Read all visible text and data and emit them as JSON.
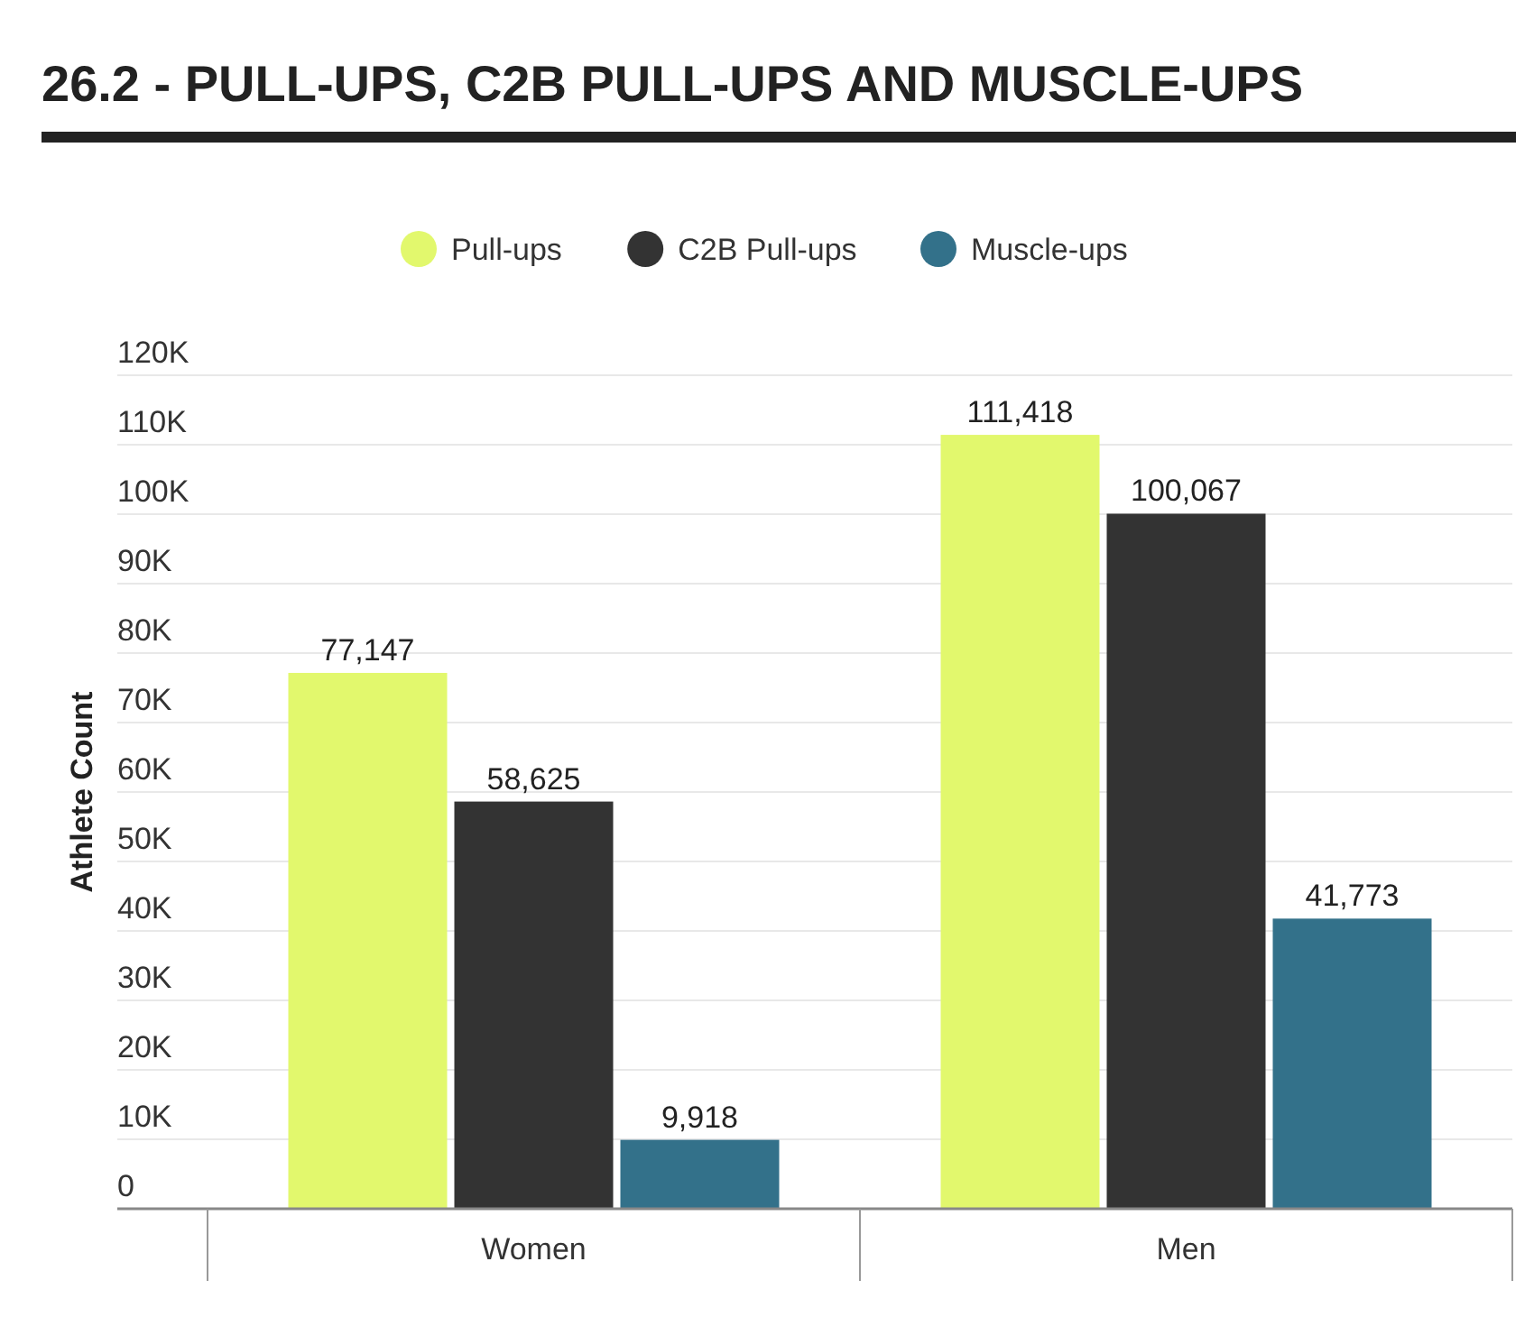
{
  "chart_data": {
    "type": "bar",
    "title": "26.2 - PULL-UPS, C2B PULL-UPS AND MUSCLE-UPS",
    "ylabel": "Athlete Count",
    "categories": [
      "Women",
      "Men"
    ],
    "series": [
      {
        "name": "Pull-ups",
        "color": "#e2f86d",
        "values": [
          77147,
          111418
        ],
        "value_labels": [
          "77,147",
          "111,418"
        ]
      },
      {
        "name": "C2B Pull-ups",
        "color": "#333333",
        "values": [
          58625,
          100067
        ],
        "value_labels": [
          "58,625",
          "100,067"
        ]
      },
      {
        "name": "Muscle-ups",
        "color": "#33718a",
        "values": [
          9918,
          41773
        ],
        "value_labels": [
          "9,918",
          "41,773"
        ]
      }
    ],
    "ylim": [
      0,
      120000
    ],
    "yticks": [
      {
        "value": 0,
        "label": "0"
      },
      {
        "value": 10000,
        "label": "10K"
      },
      {
        "value": 20000,
        "label": "20K"
      },
      {
        "value": 30000,
        "label": "30K"
      },
      {
        "value": 40000,
        "label": "40K"
      },
      {
        "value": 50000,
        "label": "50K"
      },
      {
        "value": 60000,
        "label": "60K"
      },
      {
        "value": 70000,
        "label": "70K"
      },
      {
        "value": 80000,
        "label": "80K"
      },
      {
        "value": 90000,
        "label": "90K"
      },
      {
        "value": 100000,
        "label": "100K"
      },
      {
        "value": 110000,
        "label": "110K"
      },
      {
        "value": 120000,
        "label": "120K"
      }
    ],
    "grid": "y",
    "legend": "top"
  }
}
